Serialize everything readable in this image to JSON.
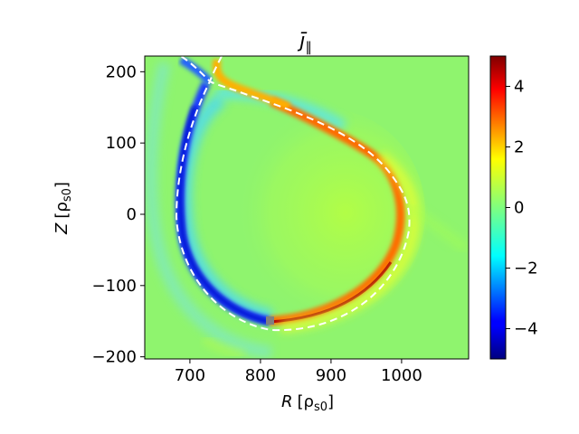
{
  "chart_data": {
    "type": "heatmap",
    "title_main": "j̄",
    "title_sub": "∥",
    "xlabel_main": "R",
    "xlabel_unit": "[ρ",
    "xlabel_sub": "s0",
    "xlabel_close": "]",
    "ylabel_main": "Z",
    "ylabel_unit": "[ρ",
    "ylabel_sub": "s0",
    "ylabel_close": "]",
    "xlim": [
      636,
      1095
    ],
    "ylim": [
      -203,
      222
    ],
    "xticks": [
      700,
      800,
      900,
      1000
    ],
    "xtick_labels": [
      "700",
      "800",
      "900",
      "1000"
    ],
    "yticks": [
      200,
      100,
      0,
      -100,
      -200
    ],
    "ytick_labels": [
      "200",
      "100",
      "0",
      "−100",
      "−200"
    ],
    "colorbar": {
      "range": [
        -5,
        5
      ],
      "ticks": [
        4,
        2,
        0,
        -2,
        -4
      ],
      "tick_labels": [
        "4",
        "2",
        "0",
        "−2",
        "−4"
      ],
      "colormap": "jet"
    },
    "separatrix_style": "white dashed",
    "marker": {
      "R": 812,
      "Z": -150,
      "color": "#808080"
    },
    "background_value": 0.6,
    "colors": {
      "background": "#8ff46e",
      "axis": "#000000",
      "separatrix": "#ffffff"
    }
  }
}
